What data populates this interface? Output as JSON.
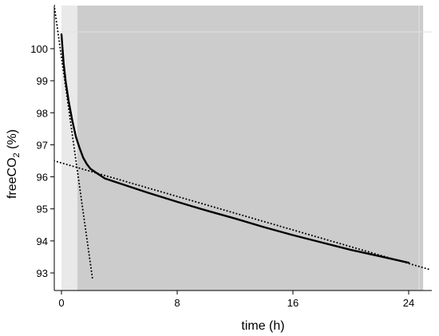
{
  "chart_data": {
    "type": "line",
    "xlabel": "time (h)",
    "ylabel": "freeCO",
    "ylabel_subscript": "2",
    "ylabel_suffix": " (%)",
    "xlim": [
      0,
      25
    ],
    "ylim": [
      92.5,
      100.5
    ],
    "x_ticks": [
      0,
      8,
      16,
      24
    ],
    "y_ticks": [
      93,
      94,
      95,
      96,
      97,
      98,
      99,
      100
    ],
    "grid": false,
    "shaded_regions": [
      {
        "x_start": 0,
        "x_end": 1.1,
        "color": "#e9e9e9"
      },
      {
        "x_start": 1.1,
        "x_end": 25,
        "color": "#cccccc"
      }
    ],
    "series": [
      {
        "style": "solid",
        "color": "#000000",
        "x": [
          0,
          0.15,
          0.3,
          0.5,
          0.75,
          1.0,
          1.25,
          1.5,
          1.75,
          2.0,
          2.5,
          3,
          4,
          6,
          8,
          10,
          12,
          14,
          16,
          18,
          20,
          22,
          24
        ],
        "y": [
          100.45,
          99.55,
          98.95,
          98.35,
          97.75,
          97.25,
          96.9,
          96.6,
          96.4,
          96.25,
          96.1,
          95.95,
          95.8,
          95.5,
          95.22,
          94.95,
          94.7,
          94.43,
          94.18,
          93.95,
          93.72,
          93.52,
          93.32
        ]
      },
      {
        "style": "dotted",
        "color": "#000000",
        "x": [
          -0.5,
          25.5
        ],
        "y": [
          96.5,
          93.1
        ]
      },
      {
        "style": "dotted",
        "color": "#000000",
        "x": [
          -0.5,
          2.15
        ],
        "y": [
          101.35,
          92.8
        ]
      }
    ]
  }
}
